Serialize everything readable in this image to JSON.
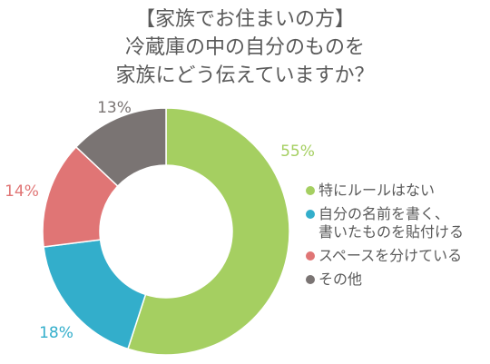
{
  "chart_data": {
    "type": "pie",
    "title_lines": [
      "【家族でお住まいの方】",
      "冷蔵庫の中の自分のものを",
      "家族にどう伝えていますか？"
    ],
    "categories": [
      "特にルールはない",
      "自分の名前を書く、\n書いたものを貼付ける",
      "スペースを分けている",
      "その他"
    ],
    "values": [
      55,
      18,
      14,
      13
    ],
    "data_labels": [
      "55%",
      "18%",
      "14%",
      "13%"
    ],
    "colors": [
      "#a5cf61",
      "#33aecb",
      "#e07575",
      "#7a7473"
    ],
    "legend_position": "right"
  }
}
